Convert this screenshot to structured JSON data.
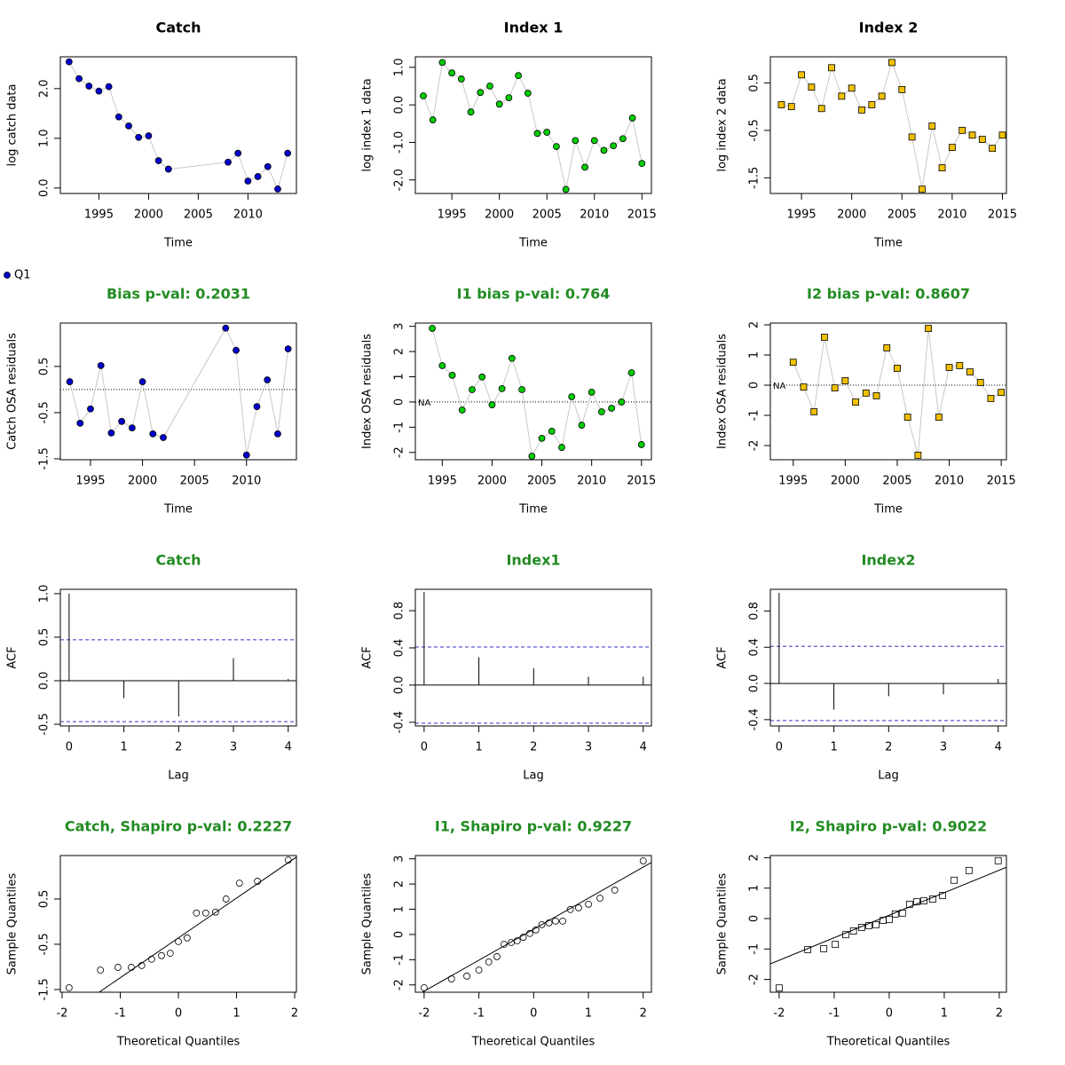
{
  "chart_data": [
    {
      "type": "line",
      "title": "Catch",
      "title_color": "#000000",
      "xlabel": "Time",
      "ylabel": "log catch data",
      "xlim": [
        1991.12,
        2014.88
      ],
      "xticks": [
        1995,
        2000,
        2005,
        2010
      ],
      "ylim": [
        -0.11,
        2.64
      ],
      "yticks": [
        {
          "value": 0,
          "label": "0.0"
        },
        {
          "value": 1,
          "label": "1.0"
        },
        {
          "value": 2,
          "label": "2.0"
        }
      ],
      "marker": "circle",
      "series": [
        {
          "color": "#0000cd",
          "x": [
            1992,
            1993,
            1994,
            1995,
            1996,
            1997,
            1998,
            1999,
            2000,
            2001,
            2002,
            2008,
            2009,
            2010,
            2011,
            2012,
            2013,
            2014
          ],
          "values": [
            2.54,
            2.2,
            2.05,
            1.95,
            2.04,
            1.43,
            1.25,
            1.02,
            1.05,
            0.55,
            0.38,
            0.52,
            0.7,
            0.14,
            0.23,
            0.43,
            -0.02,
            0.7
          ]
        }
      ]
    },
    {
      "type": "line",
      "title": "Index 1",
      "title_color": "#000000",
      "xlabel": "Time",
      "ylabel": "log index 1 data",
      "xlim": [
        1991.16,
        2016.0
      ],
      "xticks": [
        1995,
        2000,
        2005,
        2010,
        2015
      ],
      "ylim": [
        -2.36,
        1.28
      ],
      "yticks": [
        {
          "value": -2,
          "label": "-2.0"
        },
        {
          "value": -1,
          "label": "-1.0"
        },
        {
          "value": 0,
          "label": "0.0"
        },
        {
          "value": 1,
          "label": "1.0"
        }
      ],
      "marker": "circle",
      "series": [
        {
          "color": "#00cc00",
          "x": [
            1992,
            1993,
            1994,
            1995,
            1996,
            1997,
            1998,
            1999,
            2000,
            2001,
            2002,
            2003,
            2004,
            2005,
            2006,
            2007,
            2008,
            2009,
            2010,
            2011,
            2012,
            2013,
            2014,
            2015
          ],
          "values": [
            0.24,
            -0.4,
            1.13,
            0.85,
            0.69,
            -0.19,
            0.33,
            0.5,
            0.02,
            0.19,
            0.78,
            0.31,
            -0.76,
            -0.73,
            -1.11,
            -2.25,
            -0.95,
            -1.66,
            -0.95,
            -1.21,
            -1.09,
            -0.9,
            -0.35,
            -1.56
          ]
        }
      ]
    },
    {
      "type": "line",
      "title": "Index 2",
      "title_color": "#000000",
      "xlabel": "Time",
      "ylabel": "log index 2 data",
      "xlim": [
        1991.9,
        2015.4
      ],
      "xticks": [
        1995,
        2000,
        2005,
        2010,
        2015
      ],
      "ylim": [
        -1.83,
        1.05
      ],
      "yticks": [
        -1.5,
        -0.5,
        0.5
      ],
      "marker": "square",
      "series": [
        {
          "color": "#f0c000",
          "x": [
            1993,
            1994,
            1995,
            1996,
            1997,
            1998,
            1999,
            2000,
            2001,
            2002,
            2003,
            2004,
            2005,
            2006,
            2007,
            2008,
            2009,
            2010,
            2011,
            2012,
            2013,
            2014,
            2015
          ],
          "values": [
            0.04,
            0.0,
            0.67,
            0.41,
            -0.04,
            0.82,
            0.22,
            0.39,
            -0.07,
            0.04,
            0.22,
            0.93,
            0.36,
            -0.64,
            -1.74,
            -0.41,
            -1.29,
            -0.86,
            -0.5,
            -0.6,
            -0.69,
            -0.88,
            -0.6
          ]
        }
      ]
    },
    {
      "type": "line",
      "title": "Bias p-val: 0.2031",
      "title_color": "#228b22",
      "xlabel": "Time",
      "ylabel": "Catch OSA residuals",
      "xlim": [
        1992.1,
        2014.8
      ],
      "xticks": [
        1995,
        2000,
        2005,
        2010
      ],
      "ylim": [
        -1.52,
        1.44
      ],
      "yticks": [
        -1.5,
        -0.5,
        0.5
      ],
      "marker": "circle",
      "ref_line": 0,
      "legend": "outside-top-left",
      "series": [
        {
          "name": "Q1",
          "color": "#0000cd",
          "x": [
            1993,
            1994,
            1995,
            1996,
            1997,
            1998,
            1999,
            2000,
            2001,
            2002,
            2008,
            2009,
            2010,
            2011,
            2012,
            2013,
            2014
          ],
          "values": [
            0.17,
            -0.73,
            -0.42,
            0.52,
            -0.94,
            -0.69,
            -0.83,
            0.17,
            -0.96,
            -1.04,
            1.33,
            0.85,
            -1.42,
            -0.37,
            0.21,
            -0.96,
            0.88
          ]
        }
      ]
    },
    {
      "type": "line",
      "title": "I1 bias p-val: 0.764",
      "title_color": "#228b22",
      "xlabel": "Time",
      "ylabel": "Index OSA residuals",
      "xlim": [
        1992.3,
        2016.0
      ],
      "xticks": [
        1995,
        2000,
        2005,
        2010,
        2015
      ],
      "ylim": [
        -2.29,
        3.13
      ],
      "yticks": [
        -2,
        -1,
        0,
        1,
        2,
        3
      ],
      "marker": "circle",
      "ref_line": 0,
      "annotation": "NA",
      "series": [
        {
          "color": "#00cc00",
          "x": [
            1994,
            1995,
            1996,
            1997,
            1998,
            1999,
            2000,
            2001,
            2002,
            2003,
            2004,
            2005,
            2006,
            2007,
            2008,
            2009,
            2010,
            2011,
            2012,
            2013,
            2014,
            2015
          ],
          "values": [
            2.92,
            1.44,
            1.06,
            -0.32,
            0.49,
            0.99,
            -0.11,
            0.53,
            1.73,
            0.49,
            -2.15,
            -1.44,
            -1.16,
            -1.8,
            0.21,
            -0.92,
            0.39,
            -0.39,
            -0.25,
            0.0,
            1.16,
            -1.69
          ]
        }
      ]
    },
    {
      "type": "line",
      "title": "I2 bias p-val: 0.8607",
      "title_color": "#228b22",
      "xlabel": "Time",
      "ylabel": "Index OSA residuals",
      "xlim": [
        1992.8,
        2015.5
      ],
      "xticks": [
        1995,
        2000,
        2005,
        2010,
        2015
      ],
      "ylim": [
        -2.47,
        2.06
      ],
      "yticks": [
        -2,
        -1,
        0,
        1,
        2
      ],
      "marker": "square",
      "ref_line": 0,
      "annotation": "NA",
      "series": [
        {
          "color": "#f0c000",
          "x": [
            1995,
            1996,
            1997,
            1998,
            1999,
            2000,
            2001,
            2002,
            2003,
            2004,
            2005,
            2006,
            2007,
            2008,
            2009,
            2010,
            2011,
            2012,
            2013,
            2014,
            2015
          ],
          "values": [
            0.76,
            -0.06,
            -0.88,
            1.59,
            -0.09,
            0.15,
            -0.56,
            -0.26,
            -0.35,
            1.24,
            0.56,
            -1.06,
            -2.32,
            1.88,
            -1.06,
            0.59,
            0.65,
            0.44,
            0.09,
            -0.44,
            -0.24
          ]
        }
      ]
    },
    {
      "type": "bar",
      "title": "Catch",
      "title_color": "#228b22",
      "xlabel": "Lag",
      "ylabel": "ACF",
      "xlim": [
        -0.16,
        4.15
      ],
      "xticks": [
        0,
        1,
        2,
        3,
        4
      ],
      "ylim": [
        -0.52,
        1.05
      ],
      "yticks": [
        {
          "value": -0.5,
          "label": "-0.5"
        },
        {
          "value": 0,
          "label": "0.0"
        },
        {
          "value": 0.5,
          "label": "0.5"
        },
        {
          "value": 1,
          "label": "1.0"
        }
      ],
      "conf_limits": [
        0.47,
        -0.47
      ],
      "conf_color": "#3333cc",
      "x": [
        0,
        1,
        2,
        3,
        4
      ],
      "values": [
        1.0,
        -0.2,
        -0.41,
        0.26,
        0.02
      ]
    },
    {
      "type": "bar",
      "title": "Index1",
      "title_color": "#228b22",
      "xlabel": "Lag",
      "ylabel": "ACF",
      "xlim": [
        -0.16,
        4.15
      ],
      "xticks": [
        0,
        1,
        2,
        3,
        4
      ],
      "ylim": [
        -0.44,
        1.03
      ],
      "yticks": [
        {
          "value": -0.4,
          "label": "-0.4"
        },
        {
          "value": 0,
          "label": "0.0"
        },
        {
          "value": 0.4,
          "label": "0.4"
        },
        {
          "value": 0.8,
          "label": "0.8"
        }
      ],
      "conf_limits": [
        0.41,
        -0.41
      ],
      "conf_color": "#3333cc",
      "x": [
        0,
        1,
        2,
        3,
        4
      ],
      "values": [
        1.0,
        0.3,
        0.18,
        0.09,
        0.09
      ]
    },
    {
      "type": "bar",
      "title": "Index2",
      "title_color": "#228b22",
      "xlabel": "Lag",
      "ylabel": "ACF",
      "xlim": [
        -0.16,
        4.15
      ],
      "xticks": [
        0,
        1,
        2,
        3,
        4
      ],
      "ylim": [
        -0.47,
        1.04
      ],
      "yticks": [
        {
          "value": -0.4,
          "label": "-0.4"
        },
        {
          "value": 0,
          "label": "0.0"
        },
        {
          "value": 0.4,
          "label": "0.4"
        },
        {
          "value": 0.8,
          "label": "0.8"
        }
      ],
      "conf_limits": [
        0.41,
        -0.41
      ],
      "conf_color": "#3333cc",
      "x": [
        0,
        1,
        2,
        3,
        4
      ],
      "values": [
        1.0,
        -0.29,
        -0.14,
        -0.12,
        0.05
      ]
    },
    {
      "type": "scatter",
      "title": "Catch, Shapiro p-val: 0.2227",
      "title_color": "#228b22",
      "xlabel": "Theoretical Quantiles",
      "ylabel": "Sample Quantiles",
      "xlim": [
        -2.03,
        2.03
      ],
      "xticks": [
        -2,
        -1,
        0,
        1,
        2
      ],
      "ylim": [
        -1.56,
        1.46
      ],
      "yticks": [
        -1.5,
        -0.5,
        0.5
      ],
      "marker": "circle",
      "fit_line": {
        "intercept": -0.36,
        "slope": 0.88
      },
      "x": [
        -1.88,
        -1.34,
        -1.04,
        -0.81,
        -0.63,
        -0.46,
        -0.29,
        -0.14,
        0.0,
        0.15,
        0.31,
        0.47,
        0.64,
        0.82,
        1.05,
        1.36,
        1.89
      ],
      "values": [
        -1.46,
        -1.07,
        -1.01,
        -1.01,
        -0.97,
        -0.83,
        -0.75,
        -0.7,
        -0.44,
        -0.36,
        0.19,
        0.19,
        0.21,
        0.5,
        0.85,
        0.89,
        1.36
      ]
    },
    {
      "type": "scatter",
      "title": "I1, Shapiro p-val: 0.9227",
      "title_color": "#228b22",
      "xlabel": "Theoretical Quantiles",
      "ylabel": "Sample Quantiles",
      "xlim": [
        -2.16,
        2.15
      ],
      "xticks": [
        -2,
        -1,
        0,
        1,
        2
      ],
      "ylim": [
        -2.29,
        3.13
      ],
      "yticks": [
        -2,
        -1,
        0,
        1,
        2,
        3
      ],
      "marker": "circle",
      "fit_line": {
        "intercept": 0.21,
        "slope": 1.23
      },
      "x": [
        -2.0,
        -1.5,
        -1.22,
        -1.0,
        -0.82,
        -0.67,
        -0.54,
        -0.41,
        -0.3,
        -0.19,
        -0.07,
        0.04,
        0.15,
        0.28,
        0.4,
        0.53,
        0.67,
        0.82,
        1.0,
        1.21,
        1.48,
        2.0
      ],
      "values": [
        -2.11,
        -1.76,
        -1.65,
        -1.41,
        -1.09,
        -0.88,
        -0.39,
        -0.32,
        -0.25,
        -0.11,
        0.04,
        0.18,
        0.39,
        0.46,
        0.53,
        0.53,
        0.99,
        1.06,
        1.2,
        1.44,
        1.76,
        2.92
      ]
    },
    {
      "type": "scatter",
      "title": "I2, Shapiro p-val: 0.9022",
      "title_color": "#228b22",
      "xlabel": "Theoretical Quantiles",
      "ylabel": "Sample Quantiles",
      "xlim": [
        -2.16,
        2.13
      ],
      "xticks": [
        -2,
        -1,
        0,
        1,
        2
      ],
      "ylim": [
        -2.42,
        2.07
      ],
      "yticks": [
        -2,
        -1,
        0,
        1,
        2
      ],
      "marker": "square",
      "fit_line": {
        "intercept": 0.11,
        "slope": 0.74
      },
      "x": [
        -2.0,
        -1.48,
        -1.19,
        -0.98,
        -0.79,
        -0.65,
        -0.5,
        -0.37,
        -0.24,
        -0.11,
        0.0,
        0.11,
        0.24,
        0.37,
        0.5,
        0.63,
        0.79,
        0.97,
        1.18,
        1.45,
        1.98
      ],
      "values": [
        -2.28,
        -1.02,
        -0.99,
        -0.85,
        -0.53,
        -0.41,
        -0.29,
        -0.23,
        -0.2,
        -0.06,
        -0.03,
        0.15,
        0.18,
        0.47,
        0.55,
        0.58,
        0.64,
        0.76,
        1.26,
        1.58,
        1.9
      ]
    }
  ]
}
